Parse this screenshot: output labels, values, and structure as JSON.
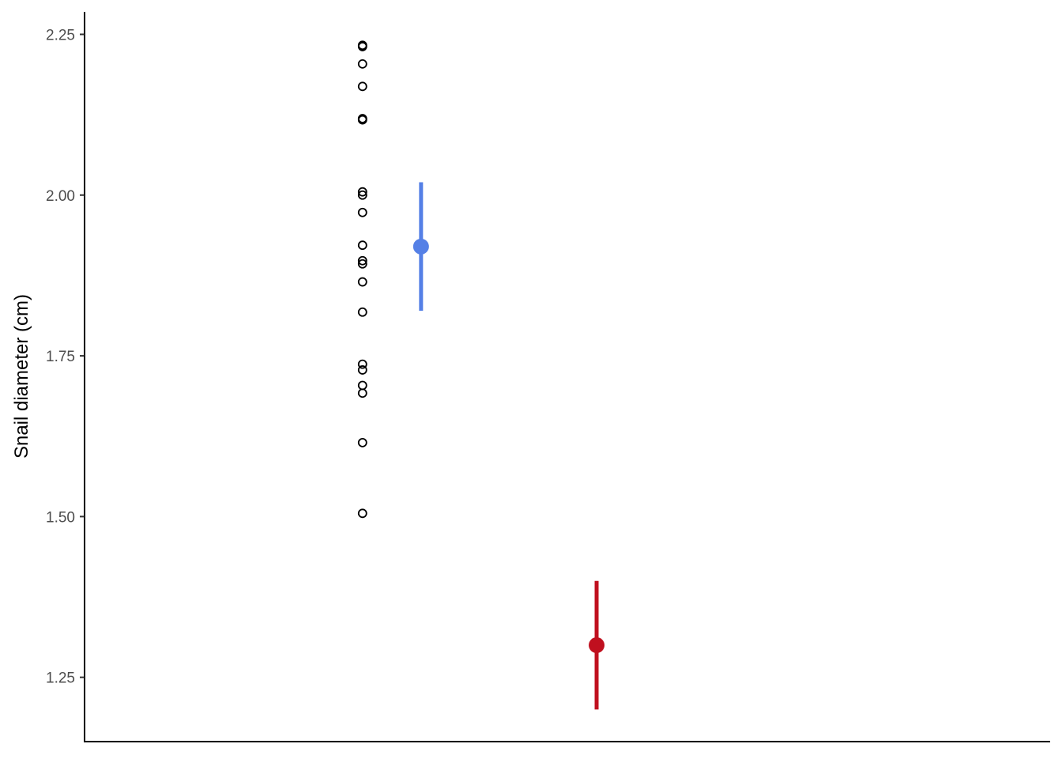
{
  "chart_data": {
    "type": "scatter",
    "title": "",
    "xlabel": "",
    "ylabel": "Snail diameter (cm)",
    "ylim": [
      1.15,
      2.285
    ],
    "y_ticks": [
      {
        "value": 1.25,
        "label": "1.25"
      },
      {
        "value": 1.5,
        "label": "1.50"
      },
      {
        "value": 1.75,
        "label": "1.75"
      },
      {
        "value": 2.0,
        "label": "2.00"
      },
      {
        "value": 2.25,
        "label": "2.25"
      }
    ],
    "x_ticks": [],
    "grid": false,
    "legend": "none",
    "raw_points": {
      "x": 1.0,
      "values": [
        2.233,
        2.231,
        2.204,
        2.169,
        2.119,
        2.117,
        2.005,
        2.0,
        1.973,
        1.922,
        1.898,
        1.893,
        1.865,
        1.818,
        1.737,
        1.728,
        1.704,
        1.692,
        1.615,
        1.505
      ],
      "marker": "open-circle",
      "color": "#000000"
    },
    "mean_error_points": [
      {
        "x": 1.2,
        "mean": 1.92,
        "lower": 1.82,
        "upper": 2.02,
        "color": "#5580E6"
      },
      {
        "x": 1.8,
        "mean": 1.3,
        "lower": 1.2,
        "upper": 1.4,
        "color": "#C0101F"
      }
    ],
    "xlim": [
      0.05,
      3.35
    ]
  }
}
